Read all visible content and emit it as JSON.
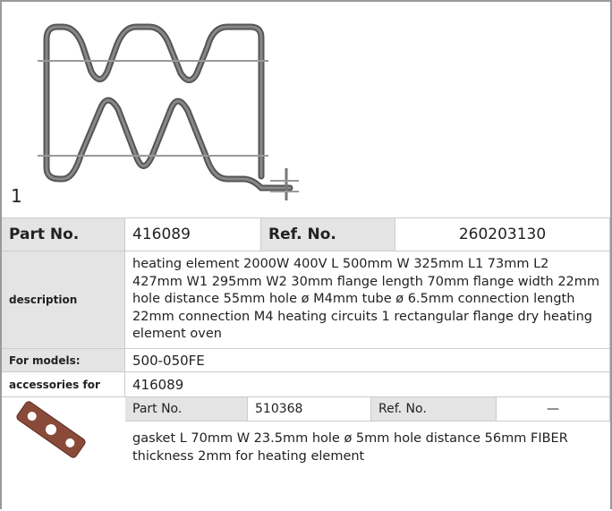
{
  "figure_label": "1",
  "spec": {
    "part_no_label": "Part No.",
    "part_no": "416089",
    "ref_no_label": "Ref. No.",
    "ref_no": "260203130",
    "description_label": "description",
    "description": "heating element  2000W 400V L 500mm W 325mm L1 73mm L2 427mm W1 295mm W2 30mm flange length 70mm flange width 22mm hole distance 55mm hole ø M4mm tube ø 6.5mm connection length 22mm connection M4 heating circuits 1 rectangular flange dry heating element oven",
    "models_label": "For models:",
    "models": "500-050FE",
    "accessories_label": "accessories for",
    "accessories": "416089"
  },
  "accessory": {
    "part_no_label": "Part No.",
    "part_no": "510368",
    "ref_no_label": "Ref. No.",
    "ref_no": "—",
    "description": "gasket  L 70mm W 23.5mm hole ø 5mm hole distance 56mm FIBER thickness 2mm for heating element"
  }
}
